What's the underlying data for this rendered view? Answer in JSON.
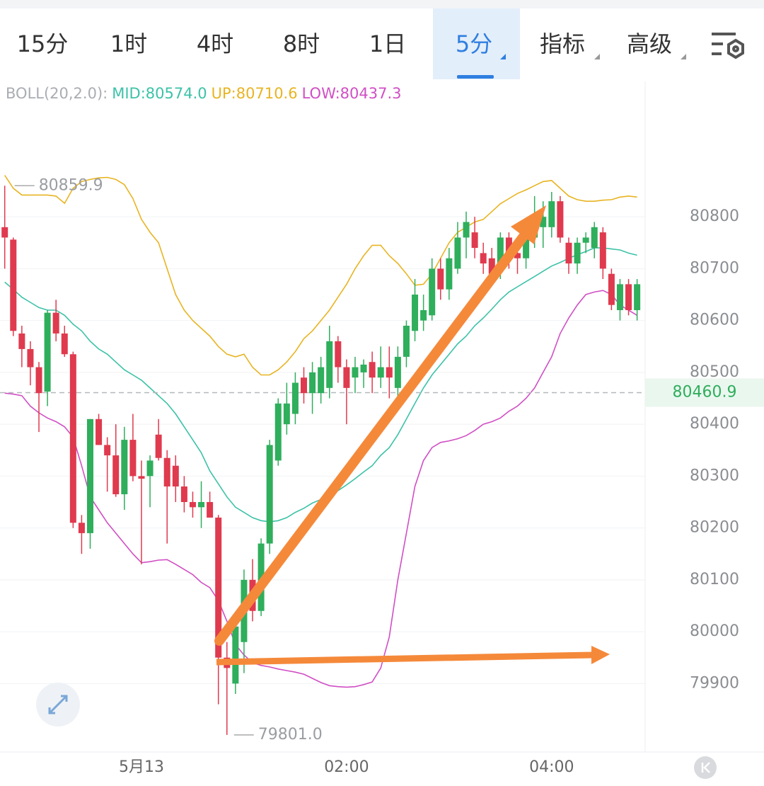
{
  "tabs": [
    "15分",
    "1时",
    "4时",
    "8时",
    "1日",
    "5分",
    "指标",
    "高级"
  ],
  "chart_data": {
    "type": "candlestick",
    "indicator": "BOLL(20,2.0):",
    "categories": [
      null,
      null,
      null,
      null,
      null,
      null,
      null,
      null,
      null,
      null,
      null,
      null,
      null,
      null,
      null,
      null,
      "5月13",
      null,
      null,
      null,
      null,
      null,
      null,
      null,
      null,
      null,
      null,
      null,
      null,
      null,
      null,
      null,
      null,
      null,
      null,
      null,
      null,
      null,
      null,
      null,
      "02:00",
      null,
      null,
      null,
      null,
      null,
      null,
      null,
      null,
      null,
      null,
      null,
      null,
      null,
      null,
      null,
      null,
      null,
      null,
      null,
      null,
      null,
      null,
      null,
      "04:00",
      null,
      null,
      null,
      null,
      null,
      null,
      null,
      null,
      null,
      null
    ],
    "open": [
      80780,
      80756,
      80575,
      80545,
      80510,
      80463,
      80615,
      80575,
      80535,
      80210,
      80190,
      80410,
      80360,
      80340,
      80265,
      80370,
      80300,
      80300,
      80380,
      80335,
      80320,
      80280,
      80250,
      80240,
      80250,
      80220,
      79950,
      79900,
      79980,
      80100,
      80040,
      80170,
      80330,
      80400,
      80420,
      80490,
      80460,
      80460,
      80470,
      80560,
      80510,
      80490,
      80500,
      80520,
      80490,
      80510,
      80470,
      80530,
      80580,
      80600,
      80610,
      80700,
      80660,
      80700,
      80760,
      80770,
      80730,
      80720,
      80700,
      80760,
      80730,
      80720,
      80760,
      80780,
      80780,
      80830,
      80750,
      80710,
      80750,
      80740,
      80770,
      80690,
      80620,
      80670,
      80620
    ],
    "high": [
      80859.9,
      80760,
      80590,
      80560,
      80520,
      80620,
      80640,
      80590,
      80540,
      80225,
      80410,
      80420,
      80375,
      80400,
      80395,
      80420,
      80330,
      80340,
      80410,
      80350,
      80340,
      80300,
      80270,
      80290,
      80270,
      80225,
      79980,
      80020,
      80120,
      80140,
      80180,
      80370,
      80450,
      80480,
      80500,
      80510,
      80520,
      80530,
      80590,
      80570,
      80525,
      80530,
      80525,
      80540,
      80550,
      80550,
      80550,
      80600,
      80680,
      80650,
      80720,
      80720,
      80740,
      80790,
      80810,
      80800,
      80750,
      80740,
      80770,
      80770,
      80760,
      80780,
      80840,
      80830,
      80848,
      80840,
      80760,
      80760,
      80770,
      80790,
      80780,
      80700,
      80680,
      80680,
      80680
    ],
    "low": [
      80700,
      80570,
      80510,
      80475,
      80385,
      80435,
      80560,
      80530,
      80200,
      80150,
      80160,
      80360,
      80270,
      80260,
      80235,
      80290,
      80130,
      80240,
      80330,
      80170,
      80250,
      80230,
      80220,
      80200,
      80220,
      79860,
      79801,
      79880,
      79920,
      80020,
      80030,
      80150,
      80320,
      80380,
      80400,
      80440,
      80420,
      80440,
      80450,
      80480,
      80400,
      80460,
      80470,
      80460,
      80470,
      80450,
      80450,
      80510,
      80560,
      80580,
      80600,
      80640,
      80640,
      80690,
      80720,
      80720,
      80690,
      80670,
      80680,
      80700,
      80690,
      80700,
      80740,
      80740,
      80760,
      80750,
      80690,
      80690,
      80730,
      80720,
      80680,
      80620,
      80600,
      80610,
      80600
    ],
    "close": [
      80760,
      80580,
      80545,
      80510,
      80460,
      80615,
      80575,
      80535,
      80210,
      80190,
      80410,
      80360,
      80340,
      80265,
      80370,
      80300,
      80295,
      80330,
      80335,
      80280,
      80280,
      80250,
      80240,
      80250,
      80220,
      79950,
      79930,
      80010,
      80100,
      80040,
      80170,
      80360,
      80440,
      80440,
      80480,
      80460,
      80500,
      80510,
      80560,
      80510,
      80470,
      80510,
      80515,
      80490,
      80510,
      80490,
      80530,
      80590,
      80650,
      80620,
      80700,
      80660,
      80720,
      80760,
      80790,
      80740,
      80710,
      80690,
      80760,
      80720,
      80720,
      80760,
      80790,
      80800,
      80830,
      80760,
      80710,
      80750,
      80760,
      80780,
      80700,
      80630,
      80670,
      80620,
      80670
    ],
    "up_color": "#2fae5c",
    "down_color": "#df3a4e",
    "series": [
      {
        "label": "MID:80574.0",
        "color": "#3cc2a8",
        "values": [
          80674,
          80660,
          80645,
          80635,
          80625,
          80620,
          80620,
          80610,
          80593,
          80580,
          80560,
          80545,
          80535,
          80520,
          80505,
          80495,
          80485,
          80470,
          80455,
          80440,
          80420,
          80395,
          80370,
          80345,
          80310,
          80285,
          80260,
          80240,
          80230,
          80220,
          80214,
          80212,
          80214,
          80220,
          80230,
          80238,
          80248,
          80255,
          80262,
          80272,
          80283,
          80295,
          80308,
          80320,
          80340,
          80355,
          80380,
          80410,
          80440,
          80470,
          80495,
          80515,
          80535,
          80555,
          80570,
          80590,
          80605,
          80622,
          80640,
          80655,
          80665,
          80675,
          80685,
          80695,
          80705,
          80712,
          80720,
          80727,
          80733,
          80740,
          80740,
          80738,
          80736,
          80730,
          80726
        ]
      },
      {
        "label": "UP:80710.6",
        "color": "#e8b422",
        "values": [
          80880,
          80855,
          80842,
          80842,
          80842,
          80842,
          80840,
          80826,
          80855,
          80868,
          80872,
          80875,
          80876,
          80872,
          80862,
          80835,
          80795,
          80770,
          80750,
          80700,
          80650,
          80620,
          80600,
          80585,
          80570,
          80550,
          80535,
          80530,
          80535,
          80510,
          80495,
          80495,
          80505,
          80520,
          80540,
          80565,
          80580,
          80600,
          80620,
          80645,
          80670,
          80700,
          80725,
          80745,
          80745,
          80725,
          80710,
          80690,
          80668,
          80670,
          80690,
          80720,
          80750,
          80770,
          80780,
          80790,
          80795,
          80810,
          80825,
          80835,
          80845,
          80852,
          80860,
          80868,
          80870,
          80855,
          80840,
          80833,
          80830,
          80830,
          80832,
          80833,
          80838,
          80840,
          80838
        ]
      },
      {
        "label": "LOW:80437.3",
        "color": "#d04fc4",
        "values": [
          80460,
          80458,
          80455,
          80435,
          80422,
          80412,
          80405,
          80395,
          80375,
          80320,
          80260,
          80235,
          80210,
          80190,
          80170,
          80150,
          80133,
          80135,
          80138,
          80139,
          80130,
          80120,
          80110,
          80095,
          80085,
          80060,
          80020,
          79975,
          79955,
          79940,
          79935,
          79932,
          79928,
          79925,
          79922,
          79918,
          79910,
          79902,
          79896,
          79894,
          79893,
          79894,
          79898,
          79903,
          79930,
          79990,
          80100,
          80190,
          80280,
          80330,
          80355,
          80365,
          80368,
          80372,
          80378,
          80388,
          80400,
          80405,
          80412,
          80425,
          80435,
          80450,
          80470,
          80500,
          80530,
          80575,
          80605,
          80630,
          80650,
          80655,
          80658,
          80650,
          80630,
          80620,
          80610
        ]
      }
    ],
    "ylim": [
      79768,
      81061
    ],
    "yticks": [
      79900,
      80000,
      80100,
      80200,
      80300,
      80400,
      80500,
      80600,
      80700,
      80800
    ],
    "grid": true,
    "max_mark": 80859.9,
    "min_mark": {
      "value": 79801,
      "label": "79801.0"
    },
    "last_price": 80460.9
  }
}
